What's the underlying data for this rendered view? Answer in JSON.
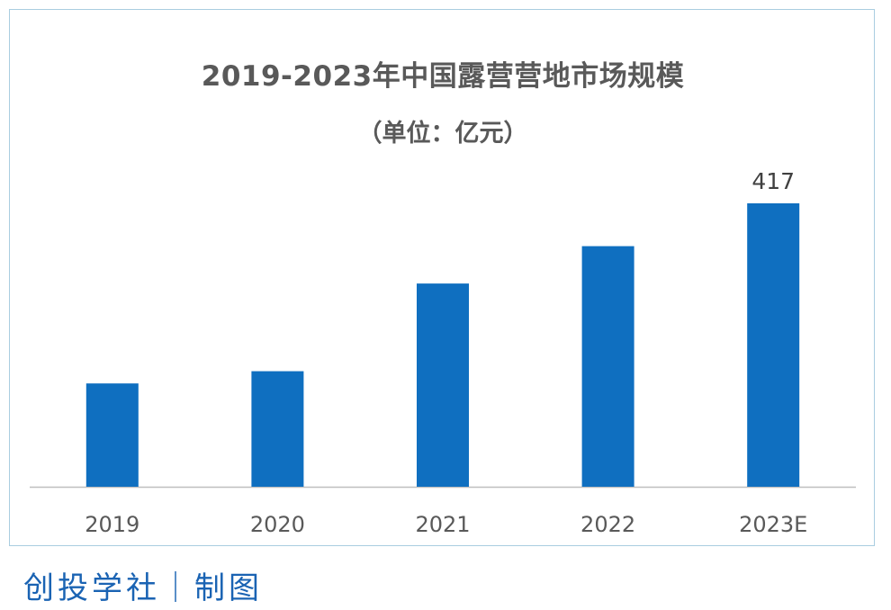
{
  "chart_data": {
    "type": "bar",
    "title": "2019-2023年中国露营营地市场规模",
    "subtitle": "（单位：亿元）",
    "categories": [
      "2019",
      "2020",
      "2021",
      "2022",
      "2023E"
    ],
    "values": [
      152,
      170,
      299,
      354,
      417
    ],
    "data_labels": [
      null,
      null,
      null,
      null,
      "417"
    ],
    "xlabel": "",
    "ylabel": "",
    "ylim": [
      0,
      420
    ],
    "grid": false,
    "legend": "none",
    "colors": {
      "bar": "#0f6fc0",
      "axis": "#bfbfbf",
      "text": "#595959",
      "label": "#404040"
    }
  },
  "footer": {
    "credit": "创投学社｜制图",
    "color": "#1a63b3"
  }
}
